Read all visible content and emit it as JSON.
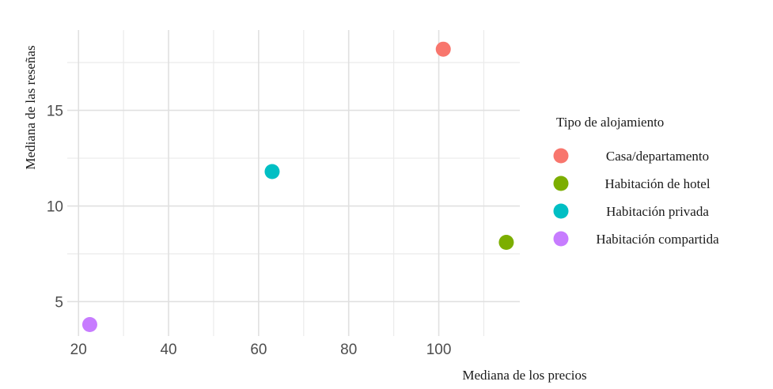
{
  "chart_data": {
    "type": "scatter",
    "xlabel": "Mediana de los precios",
    "ylabel": "Mediana de las reseñas",
    "xlim": [
      17.5,
      118
    ],
    "ylim": [
      3.2,
      19.2
    ],
    "x_ticks": [
      20,
      40,
      60,
      80,
      100
    ],
    "y_ticks": [
      5,
      10,
      15
    ],
    "grid": true,
    "legend": {
      "title": "Tipo de alojamiento",
      "placement": "right"
    },
    "series": [
      {
        "name": "Casa/departamento",
        "color": "#F8766D",
        "points": [
          {
            "x": 101,
            "y": 18.2
          }
        ]
      },
      {
        "name": "Habitación de hotel",
        "color": "#7CAE00",
        "points": [
          {
            "x": 115,
            "y": 8.1
          }
        ]
      },
      {
        "name": "Habitación privada",
        "color": "#00BFC4",
        "points": [
          {
            "x": 63,
            "y": 11.8
          }
        ]
      },
      {
        "name": "Habitación compartida",
        "color": "#C77CFF",
        "points": [
          {
            "x": 22.5,
            "y": 3.8
          }
        ]
      }
    ]
  }
}
